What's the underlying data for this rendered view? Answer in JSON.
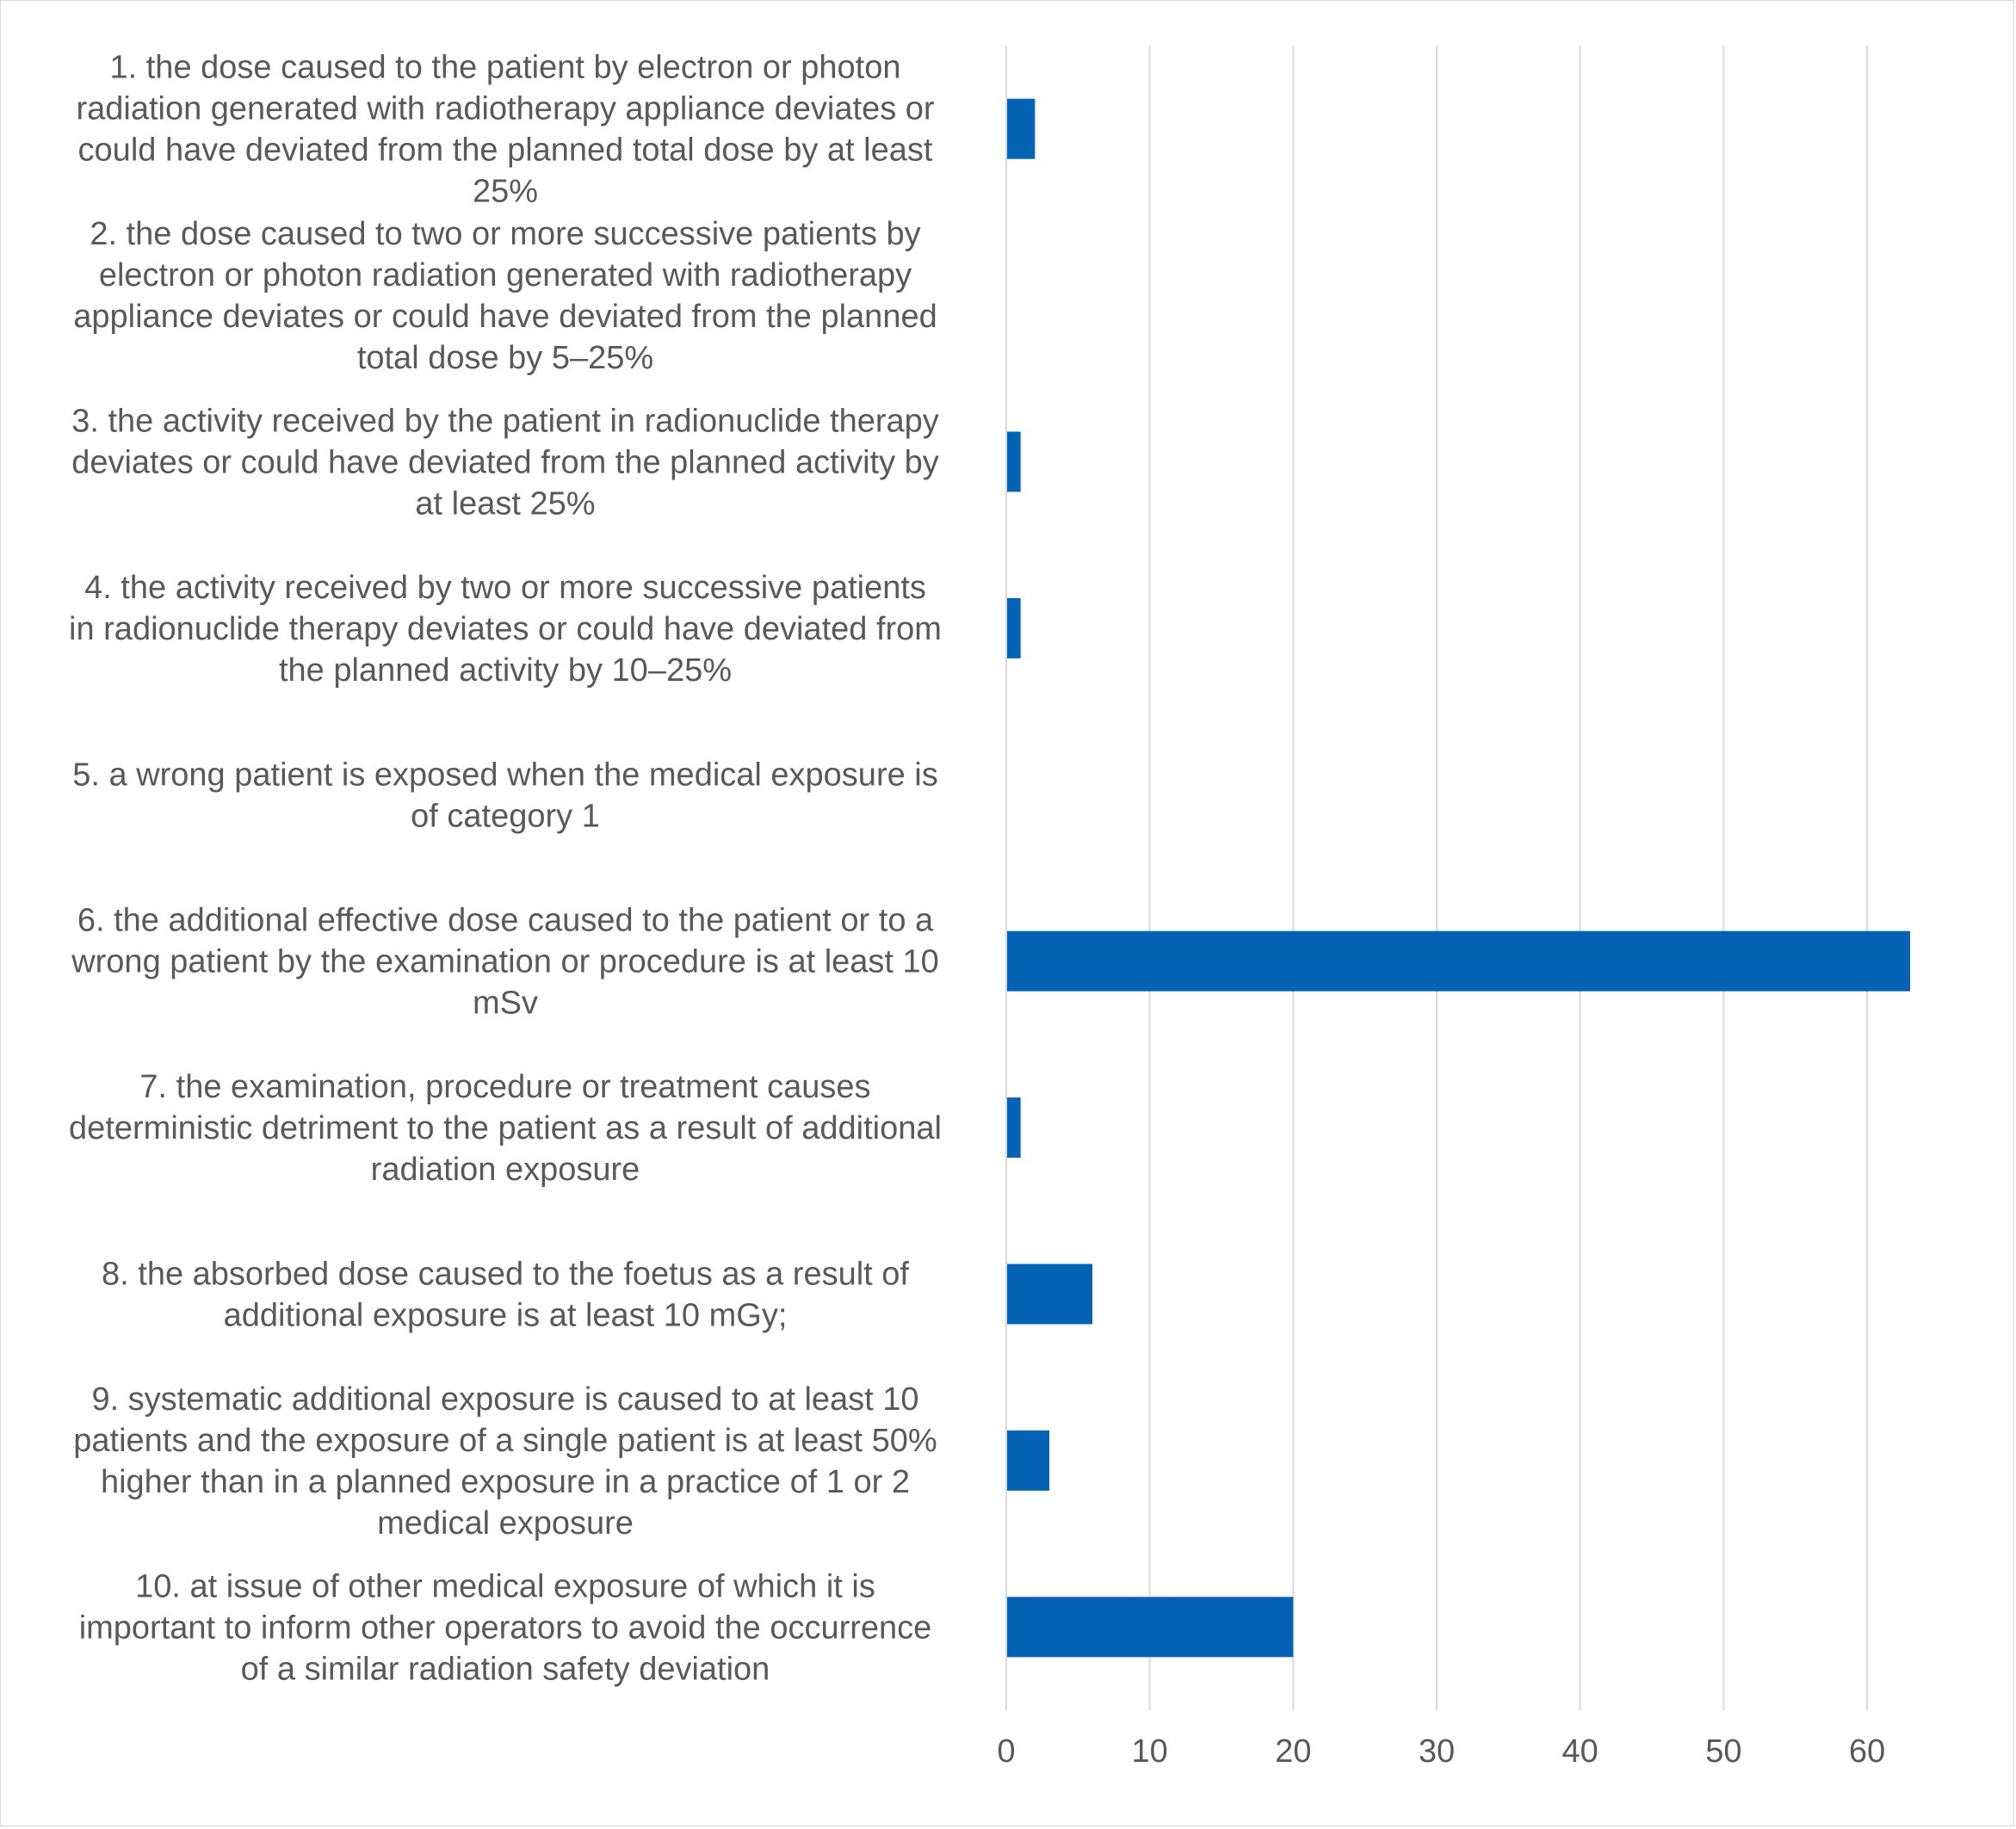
{
  "chart_data": {
    "type": "bar",
    "orientation": "horizontal",
    "categories": [
      "1. the dose caused to the patient by electron or photon radiation generated with radiotherapy appliance deviates or could have deviated from the planned total dose by at least 25%",
      "2. the dose caused to two or more successive patients by electron or photon radiation generated with radiotherapy appliance deviates or could have deviated from the planned total dose by 5–25%",
      "3. the activity received by the patient in radionuclide therapy deviates or could have deviated from the planned activity by at least 25%",
      "4. the activity received by two or more successive patients in radionuclide therapy deviates or could have deviated from the planned activity by 10–25%",
      "5. a wrong patient is exposed when the medical exposure is of category 1",
      "6. the additional effective dose caused to the patient or to a wrong patient by the examination or procedure is at least 10 mSv",
      "7. the examination, procedure or treatment causes deterministic detriment to the patient as a result of additional radiation exposure",
      "8. the absorbed dose caused to the foetus as a result of additional exposure is at least 10 mGy;",
      "9. systematic additional exposure is caused to at least 10 patients and the exposure of a single patient is at least 50% higher than in a planned exposure in a practice of 1 or 2 medical exposure",
      "10. at issue of other medical exposure of which it is important to inform other operators to avoid the occurrence of a similar radiation safety deviation"
    ],
    "category_lines": [
      [
        "1. the dose caused to the patient by electron or photon",
        "radiation generated with radiotherapy appliance deviates or",
        "could have deviated from the planned total dose by at least",
        "25%"
      ],
      [
        "2. the dose caused to two or more successive patients by",
        "electron or photon radiation generated with radiotherapy",
        "appliance deviates or could have deviated from the planned",
        "total dose by 5–25%"
      ],
      [
        "3. the activity received by the patient in radionuclide therapy",
        "deviates or could have deviated from the planned activity by",
        "at least 25%"
      ],
      [
        "4. the activity received by two or more successive patients",
        "in radionuclide therapy deviates or could have deviated from",
        "the planned activity by 10–25%"
      ],
      [
        "5. a wrong patient is exposed when the medical exposure is",
        "of category 1"
      ],
      [
        "6. the additional effective dose caused to the patient or to a",
        "wrong patient by the examination or procedure is at least 10",
        "mSv"
      ],
      [
        "7. the examination, procedure or treatment causes",
        "deterministic detriment to the patient as a result of additional",
        "radiation exposure"
      ],
      [
        "8. the absorbed dose caused to the foetus as a result of",
        "additional exposure is at least 10 mGy;"
      ],
      [
        "9. systematic additional exposure is caused to at least 10",
        "patients and the exposure of a single patient is at least 50%",
        "higher than in a planned exposure in a practice of 1 or 2",
        "medical exposure"
      ],
      [
        "10. at issue of other medical exposure of which it is",
        "important to inform other operators to avoid the occurrence",
        "of a similar radiation safety deviation"
      ]
    ],
    "values": [
      2,
      0,
      1,
      1,
      0,
      63,
      1,
      6,
      3,
      20
    ],
    "xlim": [
      0,
      66
    ],
    "xticks": [
      0,
      10,
      20,
      30,
      40,
      50,
      60
    ],
    "grid": true,
    "legend": "none",
    "bar_color": "#0563B5",
    "grid_color": "#d9d9d9",
    "text_color": "#595959"
  }
}
